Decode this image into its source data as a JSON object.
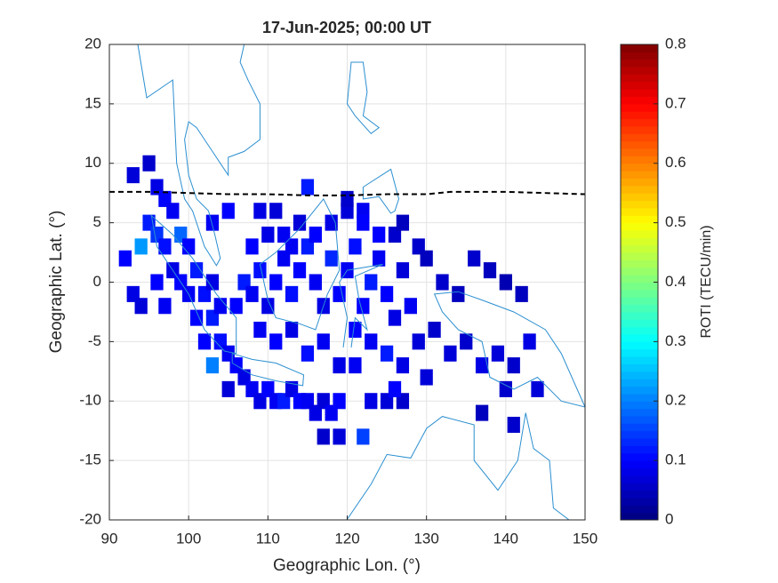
{
  "chart_data": {
    "type": "heatmap",
    "title": "17-Jun-2025; 00:00 UT",
    "xlabel": "Geographic Lon. (°)",
    "ylabel": "Geographic Lat. (°)",
    "colorbar_label": "ROTI (TECU/min)",
    "colormap": "jet",
    "xlim": [
      90,
      150
    ],
    "xticks": [
      90,
      100,
      110,
      120,
      130,
      140,
      150
    ],
    "ylim": [
      -20,
      20
    ],
    "yticks": [
      -20,
      -15,
      -10,
      -5,
      0,
      5,
      10,
      15,
      20
    ],
    "clim": [
      0,
      0.8
    ],
    "cticks": [
      0,
      0.1,
      0.2,
      0.3,
      0.4,
      0.5,
      0.6,
      0.7,
      0.8
    ],
    "grid": true,
    "x": [
      93,
      95,
      96,
      97,
      98,
      95,
      96,
      97,
      99,
      100,
      98,
      99,
      101,
      100,
      102,
      103,
      101,
      103,
      104,
      102,
      104,
      105,
      103,
      106,
      107,
      105,
      108,
      109,
      110,
      111,
      112,
      113,
      114,
      115,
      116,
      117,
      118,
      119,
      117,
      119,
      122,
      123,
      125,
      127,
      92,
      94,
      93,
      94,
      96,
      97,
      106,
      107,
      108,
      109,
      110,
      111,
      112,
      113,
      114,
      115,
      116,
      117,
      118,
      119,
      120,
      121,
      122,
      123,
      124,
      125,
      126,
      127,
      128,
      108,
      110,
      112,
      114,
      116,
      118,
      120,
      122,
      124,
      126,
      127,
      129,
      109,
      111,
      113,
      115,
      117,
      119,
      121,
      123,
      125,
      127,
      129,
      121,
      126,
      130,
      130,
      132,
      134,
      136,
      138,
      140,
      142,
      131,
      133,
      135,
      137,
      139,
      141,
      143,
      144,
      140,
      137,
      141,
      115,
      109,
      103,
      105,
      113,
      111,
      120,
      122
    ],
    "y": [
      9,
      10,
      8,
      7,
      6,
      5,
      4,
      3,
      4,
      3,
      1,
      0,
      1,
      -1,
      -1,
      0,
      -3,
      -3,
      -2,
      -5,
      -5,
      -6,
      -7,
      -7,
      -8,
      -9,
      -9,
      -10,
      -9,
      -10,
      -10,
      -9,
      -10,
      -10,
      -11,
      -10,
      -11,
      -10,
      -13,
      -13,
      -13,
      -10,
      -10,
      -10,
      2,
      3,
      -1,
      -2,
      0,
      -2,
      -2,
      0,
      -1,
      1,
      -2,
      0,
      2,
      -1,
      1,
      3,
      0,
      -2,
      2,
      -1,
      1,
      3,
      -2,
      0,
      2,
      -1,
      -3,
      1,
      -2,
      3,
      4,
      4,
      5,
      4,
      5,
      6,
      6,
      4,
      4,
      5,
      3,
      -4,
      -5,
      -4,
      -6,
      -5,
      -7,
      -4,
      -5,
      -6,
      -7,
      -5,
      -7,
      -9,
      -8,
      2,
      0,
      -1,
      2,
      1,
      0,
      -1,
      -4,
      -6,
      -5,
      -7,
      -6,
      -7,
      -5,
      -9,
      -9,
      -11,
      -12,
      8,
      6,
      5,
      6,
      3,
      6,
      7,
      5
    ],
    "values": [
      0.07,
      0.06,
      0.08,
      0.1,
      0.09,
      0.12,
      0.14,
      0.11,
      0.18,
      0.1,
      0.08,
      0.1,
      0.12,
      0.09,
      0.11,
      0.08,
      0.1,
      0.12,
      0.09,
      0.1,
      0.11,
      0.09,
      0.2,
      0.1,
      0.08,
      0.07,
      0.09,
      0.08,
      0.1,
      0.09,
      0.12,
      0.08,
      0.1,
      0.09,
      0.08,
      0.07,
      0.09,
      0.1,
      0.06,
      0.07,
      0.15,
      0.08,
      0.07,
      0.06,
      0.1,
      0.22,
      0.08,
      0.07,
      0.1,
      0.09,
      0.1,
      0.12,
      0.09,
      0.11,
      0.08,
      0.1,
      0.09,
      0.11,
      0.1,
      0.12,
      0.09,
      0.08,
      0.13,
      0.1,
      0.09,
      0.11,
      0.1,
      0.12,
      0.09,
      0.1,
      0.08,
      0.07,
      0.09,
      0.1,
      0.08,
      0.09,
      0.07,
      0.1,
      0.08,
      0.07,
      0.09,
      0.1,
      0.06,
      0.05,
      0.06,
      0.09,
      0.1,
      0.08,
      0.11,
      0.09,
      0.08,
      0.1,
      0.09,
      0.12,
      0.08,
      0.07,
      0.09,
      0.1,
      0.07,
      0.05,
      0.06,
      0.05,
      0.06,
      0.05,
      0.04,
      0.05,
      0.06,
      0.07,
      0.06,
      0.08,
      0.07,
      0.06,
      0.08,
      0.07,
      0.06,
      0.05,
      0.06,
      0.12,
      0.08,
      0.09,
      0.1,
      0.09,
      0.07,
      0.06,
      0.1
    ],
    "equator": {
      "color": "#000000",
      "x": [
        90,
        95,
        100,
        105,
        110,
        115,
        120,
        125,
        130,
        133,
        135,
        140,
        145,
        150
      ],
      "y": [
        7.6,
        7.6,
        7.5,
        7.4,
        7.4,
        7.3,
        7.3,
        7.4,
        7.4,
        7.6,
        7.6,
        7.6,
        7.5,
        7.4
      ]
    }
  }
}
